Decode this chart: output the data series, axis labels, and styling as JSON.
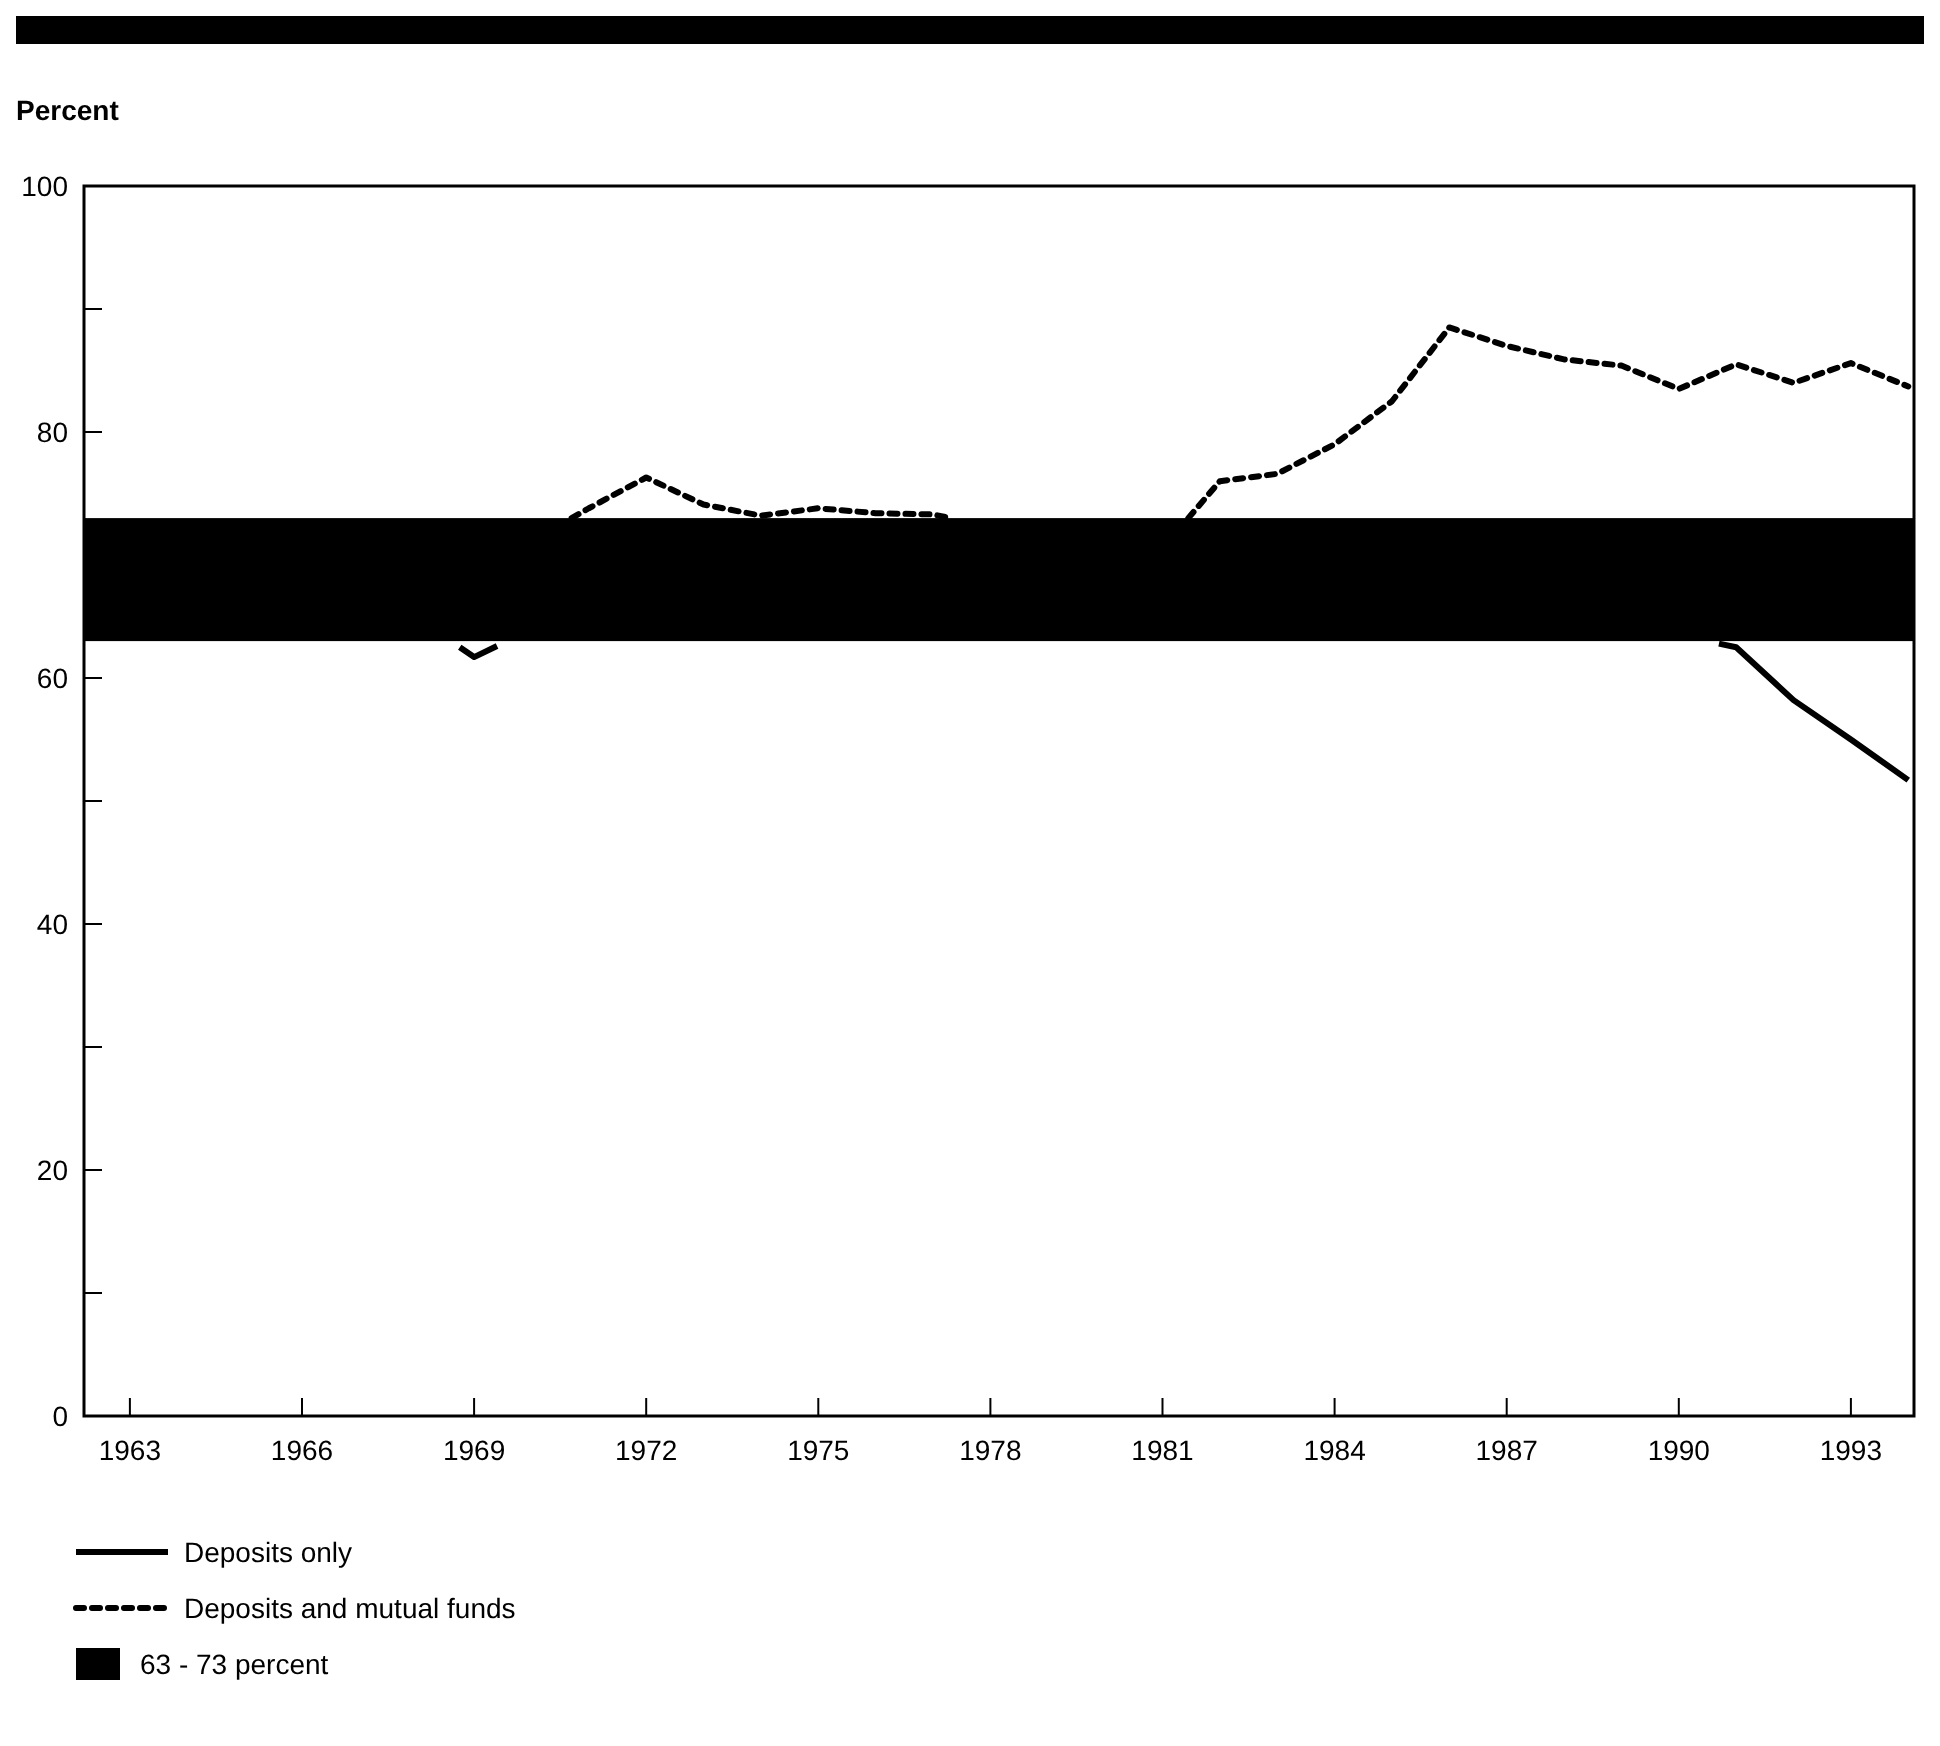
{
  "chart_data": {
    "type": "line",
    "ylabel": "Percent",
    "legend": "bottom left",
    "xlim": [
      1962.2,
      1994.1
    ],
    "xticks": [
      1963,
      1966,
      1969,
      1972,
      1975,
      1978,
      1981,
      1984,
      1987,
      1990,
      1993
    ],
    "ylim": [
      0,
      100
    ],
    "yticks": [
      0,
      {
        "value": 10,
        "label": null
      },
      20,
      {
        "value": 30,
        "label": null
      },
      40,
      {
        "value": 50,
        "label": null
      },
      60,
      {
        "value": 70,
        "label": null
      },
      80,
      {
        "value": 90,
        "label": null
      },
      100
    ],
    "grid": false,
    "series": [
      {
        "name": "Deposits only",
        "color": "#000000",
        "line_style": "solid",
        "x": [
          1968.75,
          1969,
          1969.4,
          1980,
          1990.7,
          1991,
          1992,
          1993,
          1994
        ],
        "values": [
          62.5,
          61.7,
          62.6,
          null,
          62.8,
          62.5,
          58.2,
          55,
          51.7
        ]
      },
      {
        "name": "Deposits and mutual funds",
        "color": "#000000",
        "line_style": "dashed",
        "x": [
          1970.7,
          1971,
          1972,
          1973,
          1974,
          1975,
          1976,
          1977,
          1977.3,
          1980,
          1981.45,
          1982,
          1983,
          1984,
          1985,
          1986,
          1987,
          1988,
          1989,
          1990,
          1991,
          1992,
          1993,
          1994
        ],
        "values": [
          73,
          73.8,
          76.3,
          74.1,
          73.2,
          73.8,
          73.4,
          73.3,
          73,
          null,
          73,
          76,
          76.6,
          79,
          82.5,
          88.5,
          87,
          85.9,
          85.4,
          83.5,
          85.5,
          84,
          85.6,
          83.7
        ]
      }
    ],
    "bands": [
      {
        "axis": "y",
        "from": 63,
        "to": 73,
        "label": "63 - 73 percent",
        "color": "#000000"
      }
    ]
  }
}
